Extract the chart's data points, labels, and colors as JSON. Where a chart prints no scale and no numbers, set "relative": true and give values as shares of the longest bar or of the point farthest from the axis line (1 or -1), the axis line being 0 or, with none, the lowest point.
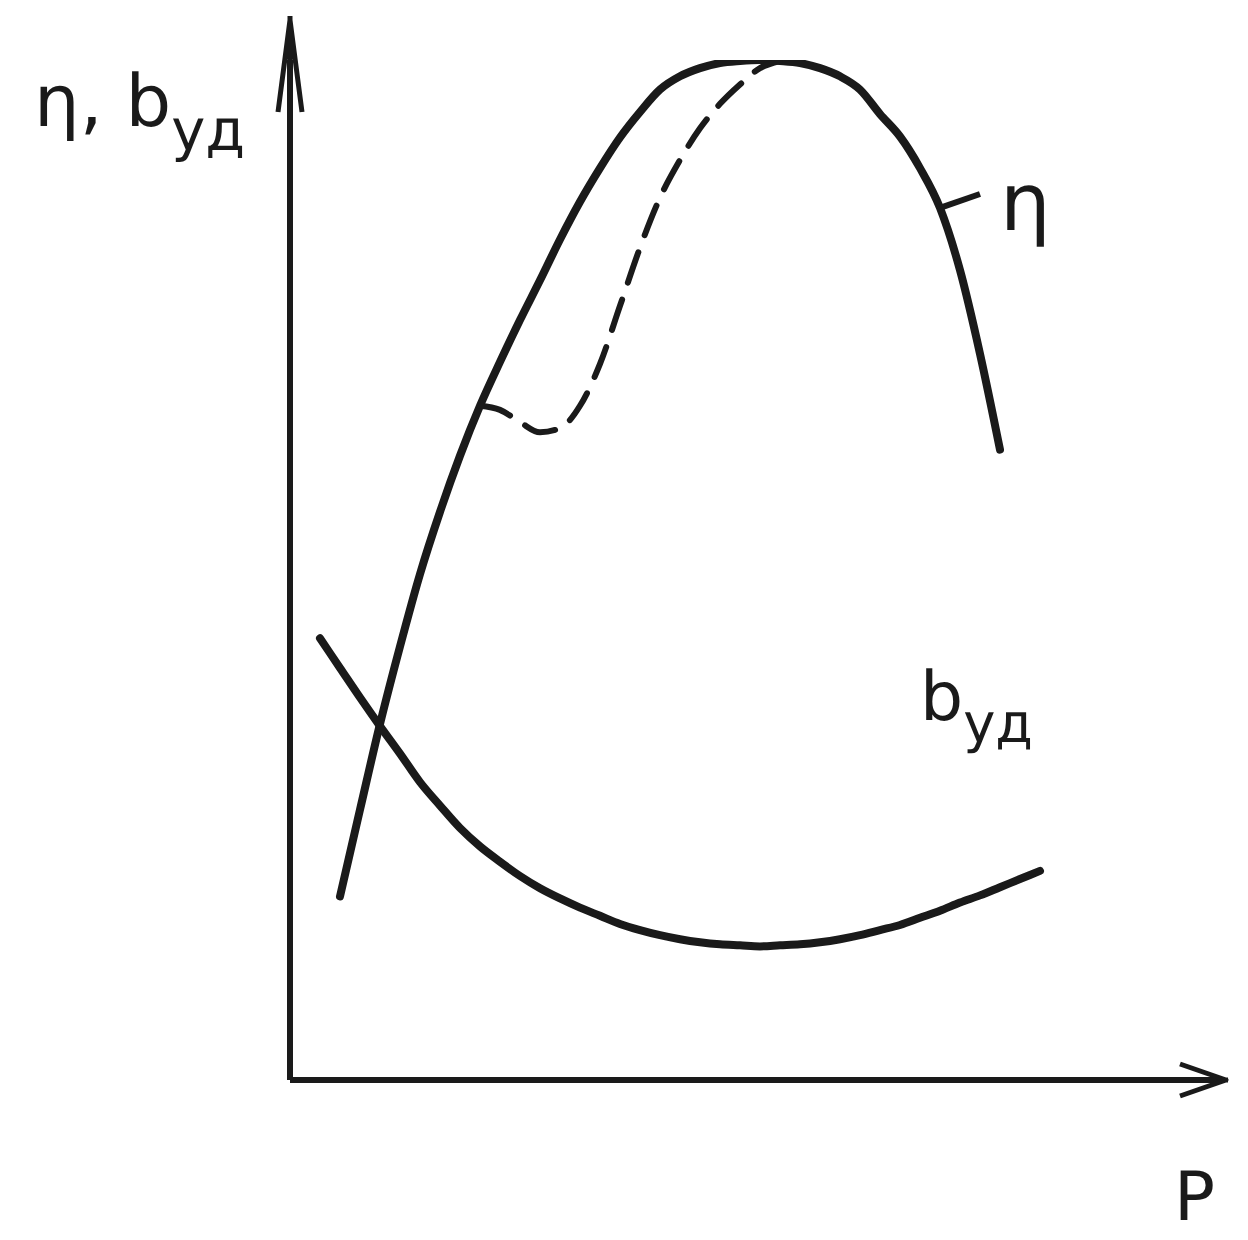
{
  "chart_data": {
    "type": "line",
    "relative": true,
    "xlabel": "P",
    "ylabel": "η, b$_{уд}$",
    "line_style": "solid",
    "categories": [
      null,
      null,
      null,
      null,
      null,
      null,
      null,
      null,
      null,
      null,
      null,
      null,
      null,
      null,
      null,
      null,
      null,
      null,
      null,
      null,
      null,
      null,
      null,
      null,
      null,
      null,
      null,
      null,
      null,
      null,
      null,
      null,
      null,
      null,
      null,
      null,
      null
    ],
    "series": [
      {
        "name": "η",
        "color": "#1a1a1a",
        "values": [
          null,
          0.18,
          0.265,
          0.349,
          0.425,
          0.496,
          0.557,
          0.612,
          0.661,
          0.704,
          0.745,
          0.784,
          0.824,
          0.861,
          0.894,
          0.924,
          0.949,
          0.971,
          0.984,
          0.992,
          0.997,
          0.999,
          1.0,
          0.999,
          0.997,
          0.992,
          0.984,
          0.971,
          0.947,
          0.925,
          0.894,
          0.855,
          0.794,
          0.712,
          0.618,
          null,
          null
        ]
      },
      {
        "color": "#1a1a1a",
        "line_style": "dashed",
        "values": [
          null,
          null,
          null,
          null,
          null,
          null,
          null,
          null,
          0.661,
          0.657,
          0.645,
          0.635,
          0.639,
          0.661,
          0.702,
          0.759,
          0.816,
          0.865,
          0.902,
          0.933,
          0.957,
          0.976,
          0.992,
          0.999,
          null,
          null,
          null,
          null,
          null,
          null,
          null,
          null,
          null,
          null,
          null,
          null,
          null
        ]
      },
      {
        "name": "b$_{уд}$",
        "color": "#1a1a1a",
        "values": [
          0.433,
          0.404,
          0.375,
          0.347,
          0.32,
          0.292,
          0.269,
          0.247,
          0.229,
          0.214,
          0.2,
          0.188,
          0.178,
          0.169,
          0.161,
          0.153,
          0.147,
          0.142,
          0.138,
          0.135,
          0.133,
          0.132,
          0.131,
          0.132,
          0.133,
          0.135,
          0.138,
          0.142,
          0.147,
          0.152,
          0.159,
          0.166,
          0.174,
          0.181,
          0.189,
          0.197,
          0.205
        ]
      }
    ]
  }
}
